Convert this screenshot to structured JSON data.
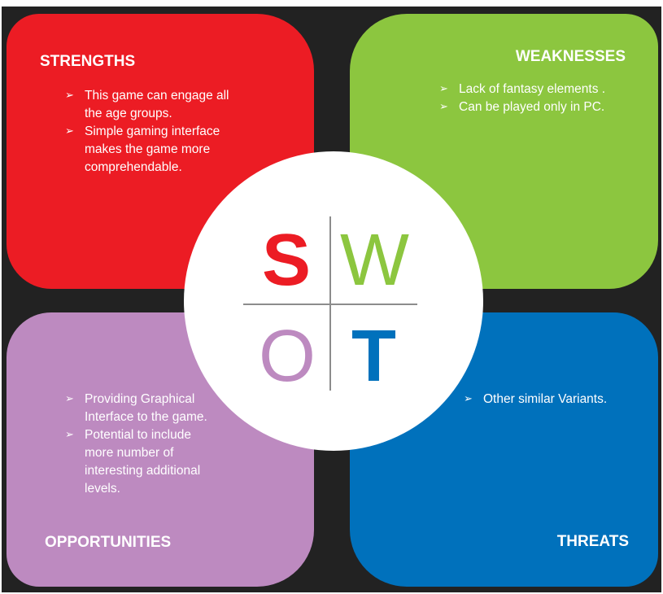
{
  "colors": {
    "background": "#222222",
    "strengths": "#ec1c24",
    "weaknesses": "#8cc63f",
    "opportunities": "#bd8ac0",
    "threats": "#0071bc",
    "divider": "#8c8c8c"
  },
  "center": {
    "letters": {
      "s": "S",
      "w": "W",
      "o": "O",
      "t": "T"
    }
  },
  "strengths": {
    "title": "STRENGTHS",
    "items": [
      {
        "marker": "➢",
        "lines": [
          "This game can engage all",
          "the age groups."
        ]
      },
      {
        "marker": "➢",
        "lines": [
          "Simple gaming interface",
          "makes the game more",
          "comprehendable."
        ]
      }
    ]
  },
  "weaknesses": {
    "title": "WEAKNESSES",
    "items": [
      {
        "marker": "➢",
        "lines": [
          "Lack of fantasy elements ."
        ]
      },
      {
        "marker": "➢",
        "lines": [
          "Can be played only in PC."
        ]
      }
    ]
  },
  "opportunities": {
    "title": "OPPORTUNITIES",
    "items": [
      {
        "marker": "➢",
        "lines": [
          "Providing Graphical",
          "Interface to the game."
        ]
      },
      {
        "marker": "➢",
        "lines": [
          "Potential to include",
          "more number of",
          "interesting additional",
          "levels."
        ]
      }
    ]
  },
  "threats": {
    "title": "THREATS",
    "items": [
      {
        "marker": "➢",
        "lines": [
          "Other similar Variants."
        ]
      }
    ]
  }
}
